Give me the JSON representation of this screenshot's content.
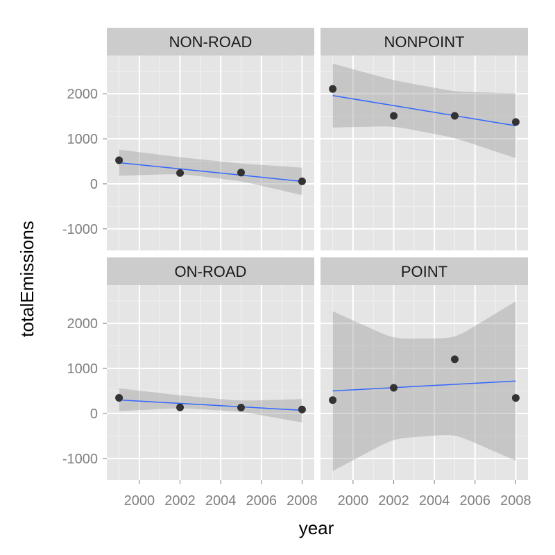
{
  "chart_data": {
    "type": "scatter",
    "facet_layout": "2x2",
    "xlabel": "year",
    "ylabel": "totalEmissions",
    "x_ticks": [
      2000,
      2002,
      2004,
      2006,
      2008
    ],
    "x_tick_labels": [
      "2000",
      "2002",
      "2004",
      "2006",
      "2008"
    ],
    "y_ticks": [
      -1000,
      0,
      1000,
      2000
    ],
    "y_tick_labels": [
      "-1000",
      "0",
      "1000",
      "2000"
    ],
    "xlim": [
      1998.4,
      2008.6
    ],
    "ylim": [
      -1480,
      2850
    ],
    "grid": true,
    "colors": {
      "panel_bg": "#e5e5e5",
      "strip_bg": "#cccccc",
      "grid_major": "#ffffff",
      "grid_minor": "#f2f2f2",
      "points": "#333333",
      "fit_line": "#3366ff",
      "ribbon": "#999999"
    },
    "facets": [
      {
        "label": "NON-ROAD",
        "x": [
          1999,
          2002,
          2005,
          2008
        ],
        "y": [
          522.9,
          240.8,
          248.9,
          55.8
        ],
        "fit": [
          470,
          54
        ],
        "band_upper": [
          760,
          590,
          450,
          360
        ],
        "band_lower": [
          180,
          220,
          60,
          -250
        ]
      },
      {
        "label": "NONPOINT",
        "x": [
          1999,
          2002,
          2005,
          2008
        ],
        "y": [
          2107.6,
          1509.5,
          1509.5,
          1373.2
        ],
        "fit": [
          1960,
          1290
        ],
        "band_upper": [
          2670,
          2300,
          2050,
          2010
        ],
        "band_lower": [
          1250,
          1280,
          1020,
          570
        ]
      },
      {
        "label": "ON-ROAD",
        "x": [
          1999,
          2002,
          2005,
          2008
        ],
        "y": [
          346.8,
          134.3,
          130.4,
          88.3
        ],
        "fit": [
          300,
          70
        ],
        "band_upper": [
          560,
          400,
          280,
          320
        ],
        "band_lower": [
          50,
          120,
          40,
          -200
        ]
      },
      {
        "label": "POINT",
        "x": [
          1999,
          2002,
          2005,
          2008
        ],
        "y": [
          296.8,
          569.3,
          1202.5,
          344.97
        ],
        "fit": [
          500,
          720
        ],
        "band_upper": [
          2270,
          1660,
          1670,
          2490
        ],
        "band_lower": [
          -1280,
          -560,
          -460,
          -1050
        ]
      }
    ]
  }
}
